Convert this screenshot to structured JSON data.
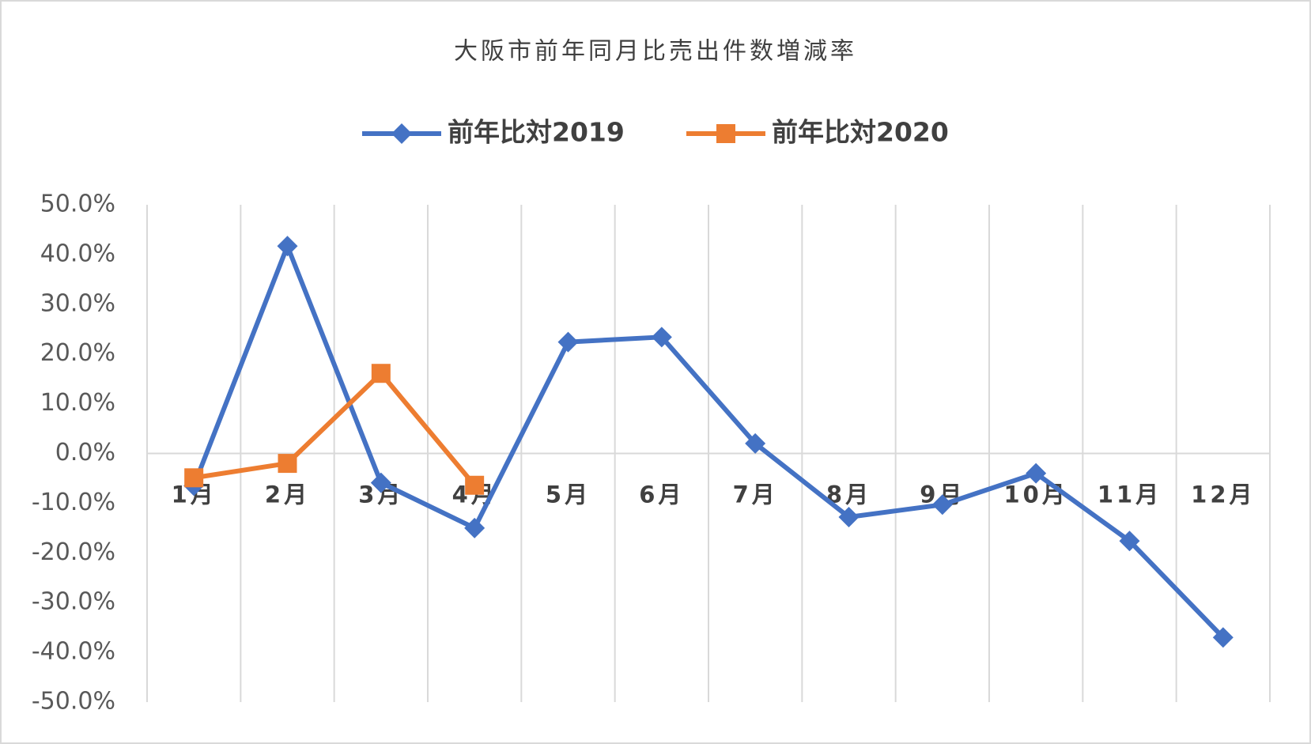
{
  "chart_data": {
    "type": "line",
    "title": "大阪市前年同月比売出件数増減率",
    "categories": [
      "1月",
      "2月",
      "3月",
      "4月",
      "5月",
      "6月",
      "7月",
      "8月",
      "9月",
      "10月",
      "11月",
      "12月"
    ],
    "series": [
      {
        "name": "前年比対2019",
        "color": "#4472c4",
        "marker": "diamond",
        "values": [
          -6.5,
          41.7,
          -5.9,
          -15.0,
          22.4,
          23.4,
          2.0,
          -12.8,
          -10.3,
          -4.0,
          -17.6,
          -37.0
        ]
      },
      {
        "name": "前年比対2020",
        "color": "#ed7d31",
        "marker": "square",
        "values": [
          -4.9,
          -2.0,
          16.1,
          -6.4,
          null,
          null,
          null,
          null,
          null,
          null,
          null,
          null
        ]
      }
    ],
    "ylim": [
      -50,
      50
    ],
    "yticks": [
      {
        "value": 50,
        "label": "50.0%"
      },
      {
        "value": 40,
        "label": "40.0%"
      },
      {
        "value": 30,
        "label": "30.0%"
      },
      {
        "value": 20,
        "label": "20.0%"
      },
      {
        "value": 10,
        "label": "10.0%"
      },
      {
        "value": 0,
        "label": "0.0%"
      },
      {
        "value": -10,
        "label": "-10.0%"
      },
      {
        "value": -20,
        "label": "-20.0%"
      },
      {
        "value": -30,
        "label": "-30.0%"
      },
      {
        "value": -40,
        "label": "-40.0%"
      },
      {
        "value": -50,
        "label": "-50.0%"
      }
    ],
    "grid": "vertical",
    "legend": "top"
  }
}
